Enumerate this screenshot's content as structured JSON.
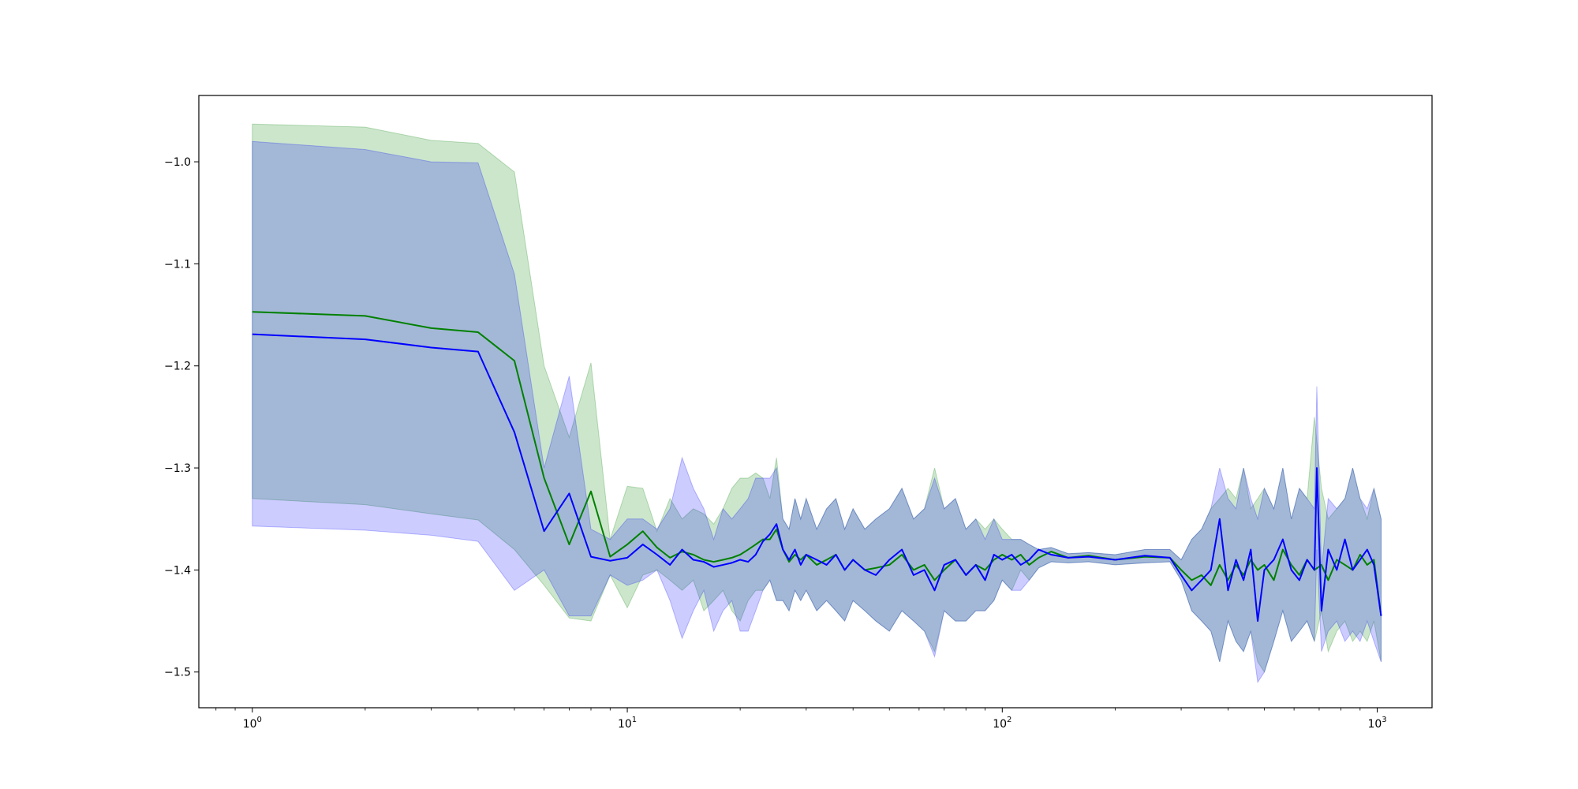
{
  "chart_data": {
    "type": "line",
    "title": "",
    "xlabel": "",
    "ylabel": "",
    "xscale": "log",
    "xlim": [
      0.72,
      1400
    ],
    "ylim": [
      -1.535,
      -0.935
    ],
    "grid": false,
    "legend": "none",
    "x_ticks": [
      {
        "value": 1,
        "label": "10^0",
        "base": "10",
        "exp": "0"
      },
      {
        "value": 10,
        "label": "10^1",
        "base": "10",
        "exp": "1"
      },
      {
        "value": 100,
        "label": "10^2",
        "base": "10",
        "exp": "2"
      },
      {
        "value": 1000,
        "label": "10^3",
        "base": "10",
        "exp": "3"
      }
    ],
    "y_ticks": [
      {
        "value": -1.0,
        "label": "−1.0"
      },
      {
        "value": -1.1,
        "label": "−1.1"
      },
      {
        "value": -1.2,
        "label": "−1.2"
      },
      {
        "value": -1.3,
        "label": "−1.3"
      },
      {
        "value": -1.4,
        "label": "−1.4"
      },
      {
        "value": -1.5,
        "label": "−1.5"
      }
    ],
    "series": [
      {
        "color": "#008000",
        "band_color": "#008000",
        "band_opacity": 0.2,
        "x": [
          1,
          2,
          3,
          4,
          5,
          6,
          7,
          8,
          9,
          10,
          11,
          12,
          13,
          14,
          15,
          16,
          17,
          18,
          19,
          20,
          21,
          22,
          23,
          24,
          25,
          26,
          27,
          28,
          29,
          30,
          32,
          34,
          36,
          38,
          40,
          43,
          46,
          50,
          54,
          58,
          62,
          66,
          70,
          75,
          80,
          85,
          90,
          95,
          100,
          106,
          112,
          118,
          125,
          135,
          150,
          170,
          200,
          240,
          280,
          300,
          320,
          340,
          360,
          380,
          400,
          420,
          440,
          460,
          480,
          500,
          530,
          560,
          590,
          620,
          650,
          680,
          710,
          740,
          780,
          820,
          860,
          900,
          940,
          980,
          1024
        ],
        "y": [
          -1.147,
          -1.151,
          -1.163,
          -1.167,
          -1.195,
          -1.31,
          -1.375,
          -1.323,
          -1.387,
          -1.375,
          -1.362,
          -1.378,
          -1.388,
          -1.382,
          -1.385,
          -1.39,
          -1.392,
          -1.39,
          -1.388,
          -1.385,
          -1.38,
          -1.375,
          -1.37,
          -1.37,
          -1.36,
          -1.38,
          -1.392,
          -1.385,
          -1.39,
          -1.385,
          -1.395,
          -1.39,
          -1.385,
          -1.4,
          -1.39,
          -1.4,
          -1.398,
          -1.395,
          -1.385,
          -1.4,
          -1.395,
          -1.41,
          -1.4,
          -1.39,
          -1.405,
          -1.395,
          -1.4,
          -1.39,
          -1.385,
          -1.39,
          -1.385,
          -1.395,
          -1.388,
          -1.382,
          -1.388,
          -1.386,
          -1.39,
          -1.387,
          -1.388,
          -1.4,
          -1.41,
          -1.405,
          -1.415,
          -1.395,
          -1.41,
          -1.395,
          -1.405,
          -1.39,
          -1.4,
          -1.395,
          -1.41,
          -1.38,
          -1.395,
          -1.405,
          -1.39,
          -1.4,
          -1.395,
          -1.41,
          -1.39,
          -1.395,
          -1.4,
          -1.385,
          -1.395,
          -1.39,
          -1.445
        ],
        "upper": [
          -0.963,
          -0.966,
          -0.979,
          -0.982,
          -1.01,
          -1.2,
          -1.27,
          -1.197,
          -1.37,
          -1.318,
          -1.32,
          -1.362,
          -1.33,
          -1.35,
          -1.34,
          -1.345,
          -1.355,
          -1.34,
          -1.32,
          -1.31,
          -1.31,
          -1.305,
          -1.31,
          -1.33,
          -1.29,
          -1.35,
          -1.36,
          -1.33,
          -1.35,
          -1.33,
          -1.36,
          -1.34,
          -1.33,
          -1.36,
          -1.34,
          -1.36,
          -1.35,
          -1.34,
          -1.32,
          -1.35,
          -1.34,
          -1.3,
          -1.34,
          -1.33,
          -1.36,
          -1.35,
          -1.36,
          -1.35,
          -1.36,
          -1.37,
          -1.37,
          -1.375,
          -1.38,
          -1.378,
          -1.384,
          -1.383,
          -1.385,
          -1.38,
          -1.38,
          -1.39,
          -1.37,
          -1.36,
          -1.34,
          -1.33,
          -1.32,
          -1.33,
          -1.3,
          -1.34,
          -1.33,
          -1.32,
          -1.34,
          -1.3,
          -1.35,
          -1.32,
          -1.33,
          -1.25,
          -1.32,
          -1.35,
          -1.34,
          -1.33,
          -1.3,
          -1.33,
          -1.35,
          -1.32,
          -1.35
        ],
        "lower": [
          -1.33,
          -1.336,
          -1.345,
          -1.351,
          -1.38,
          -1.415,
          -1.447,
          -1.45,
          -1.405,
          -1.437,
          -1.405,
          -1.4,
          -1.41,
          -1.42,
          -1.41,
          -1.44,
          -1.43,
          -1.42,
          -1.44,
          -1.45,
          -1.43,
          -1.42,
          -1.42,
          -1.41,
          -1.43,
          -1.43,
          -1.44,
          -1.42,
          -1.43,
          -1.42,
          -1.44,
          -1.43,
          -1.44,
          -1.45,
          -1.43,
          -1.44,
          -1.45,
          -1.46,
          -1.44,
          -1.45,
          -1.46,
          -1.48,
          -1.44,
          -1.45,
          -1.45,
          -1.44,
          -1.44,
          -1.43,
          -1.41,
          -1.42,
          -1.4,
          -1.41,
          -1.398,
          -1.392,
          -1.393,
          -1.392,
          -1.395,
          -1.393,
          -1.392,
          -1.41,
          -1.44,
          -1.45,
          -1.46,
          -1.49,
          -1.45,
          -1.47,
          -1.48,
          -1.46,
          -1.49,
          -1.5,
          -1.47,
          -1.44,
          -1.47,
          -1.46,
          -1.45,
          -1.47,
          -1.44,
          -1.48,
          -1.46,
          -1.45,
          -1.47,
          -1.46,
          -1.47,
          -1.45,
          -1.49
        ]
      },
      {
        "color": "#0000ff",
        "band_color": "#0000ff",
        "band_opacity": 0.2,
        "x": [
          1,
          2,
          3,
          4,
          5,
          6,
          7,
          8,
          9,
          10,
          11,
          12,
          13,
          14,
          15,
          16,
          17,
          18,
          19,
          20,
          21,
          22,
          23,
          24,
          25,
          26,
          27,
          28,
          29,
          30,
          32,
          34,
          36,
          38,
          40,
          43,
          46,
          50,
          54,
          58,
          62,
          66,
          70,
          75,
          80,
          85,
          90,
          95,
          100,
          106,
          112,
          118,
          125,
          135,
          150,
          170,
          200,
          240,
          280,
          300,
          320,
          340,
          360,
          380,
          400,
          420,
          440,
          460,
          480,
          500,
          530,
          560,
          590,
          620,
          650,
          680,
          690,
          710,
          740,
          780,
          820,
          860,
          900,
          940,
          980,
          1024
        ],
        "y": [
          -1.169,
          -1.174,
          -1.182,
          -1.186,
          -1.265,
          -1.362,
          -1.325,
          -1.387,
          -1.391,
          -1.388,
          -1.375,
          -1.385,
          -1.395,
          -1.38,
          -1.39,
          -1.392,
          -1.397,
          -1.395,
          -1.393,
          -1.39,
          -1.392,
          -1.385,
          -1.372,
          -1.365,
          -1.355,
          -1.38,
          -1.39,
          -1.38,
          -1.395,
          -1.385,
          -1.39,
          -1.395,
          -1.385,
          -1.4,
          -1.39,
          -1.4,
          -1.405,
          -1.39,
          -1.38,
          -1.405,
          -1.4,
          -1.42,
          -1.395,
          -1.39,
          -1.405,
          -1.395,
          -1.41,
          -1.385,
          -1.39,
          -1.385,
          -1.395,
          -1.39,
          -1.38,
          -1.385,
          -1.388,
          -1.387,
          -1.39,
          -1.386,
          -1.388,
          -1.405,
          -1.42,
          -1.41,
          -1.4,
          -1.35,
          -1.42,
          -1.39,
          -1.41,
          -1.38,
          -1.45,
          -1.4,
          -1.39,
          -1.37,
          -1.4,
          -1.41,
          -1.39,
          -1.4,
          -1.3,
          -1.44,
          -1.38,
          -1.4,
          -1.37,
          -1.4,
          -1.39,
          -1.38,
          -1.395,
          -1.445
        ],
        "upper": [
          -0.98,
          -0.988,
          -1.0,
          -1.001,
          -1.11,
          -1.3,
          -1.21,
          -1.36,
          -1.37,
          -1.35,
          -1.35,
          -1.36,
          -1.34,
          -1.29,
          -1.32,
          -1.34,
          -1.37,
          -1.34,
          -1.35,
          -1.34,
          -1.33,
          -1.31,
          -1.31,
          -1.31,
          -1.3,
          -1.35,
          -1.36,
          -1.33,
          -1.35,
          -1.33,
          -1.36,
          -1.34,
          -1.33,
          -1.36,
          -1.34,
          -1.36,
          -1.35,
          -1.34,
          -1.32,
          -1.35,
          -1.34,
          -1.31,
          -1.34,
          -1.33,
          -1.36,
          -1.35,
          -1.37,
          -1.35,
          -1.37,
          -1.37,
          -1.37,
          -1.375,
          -1.38,
          -1.378,
          -1.384,
          -1.383,
          -1.385,
          -1.38,
          -1.38,
          -1.39,
          -1.37,
          -1.36,
          -1.34,
          -1.3,
          -1.33,
          -1.34,
          -1.3,
          -1.33,
          -1.35,
          -1.32,
          -1.34,
          -1.3,
          -1.35,
          -1.32,
          -1.33,
          -1.34,
          -1.22,
          -1.4,
          -1.33,
          -1.34,
          -1.33,
          -1.3,
          -1.33,
          -1.34,
          -1.32,
          -1.35
        ],
        "lower": [
          -1.357,
          -1.361,
          -1.366,
          -1.372,
          -1.42,
          -1.4,
          -1.445,
          -1.445,
          -1.405,
          -1.415,
          -1.41,
          -1.4,
          -1.43,
          -1.467,
          -1.44,
          -1.42,
          -1.46,
          -1.44,
          -1.43,
          -1.46,
          -1.46,
          -1.44,
          -1.42,
          -1.41,
          -1.43,
          -1.43,
          -1.44,
          -1.42,
          -1.43,
          -1.42,
          -1.44,
          -1.43,
          -1.44,
          -1.45,
          -1.43,
          -1.44,
          -1.45,
          -1.46,
          -1.44,
          -1.45,
          -1.46,
          -1.485,
          -1.44,
          -1.45,
          -1.45,
          -1.44,
          -1.44,
          -1.43,
          -1.41,
          -1.42,
          -1.42,
          -1.41,
          -1.398,
          -1.392,
          -1.393,
          -1.392,
          -1.395,
          -1.393,
          -1.392,
          -1.41,
          -1.44,
          -1.45,
          -1.46,
          -1.49,
          -1.45,
          -1.47,
          -1.48,
          -1.46,
          -1.51,
          -1.5,
          -1.47,
          -1.44,
          -1.47,
          -1.46,
          -1.45,
          -1.47,
          -1.38,
          -1.48,
          -1.46,
          -1.45,
          -1.47,
          -1.46,
          -1.47,
          -1.45,
          -1.47,
          -1.49
        ]
      }
    ]
  }
}
